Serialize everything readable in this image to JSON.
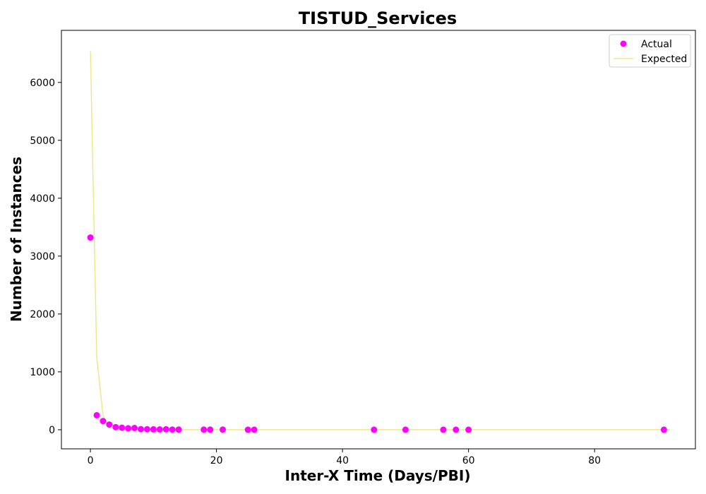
{
  "chart_data": {
    "type": "scatter",
    "title": "TISTUD_Services",
    "xlabel": "Inter-X Time (Days/PBI)",
    "ylabel": "Number of Instances",
    "xlim": [
      -4.6,
      96
    ],
    "ylim": [
      -330,
      6900
    ],
    "xticks": [
      0,
      20,
      40,
      60,
      80
    ],
    "yticks": [
      0,
      1000,
      2000,
      3000,
      4000,
      5000,
      6000
    ],
    "grid": false,
    "legend_position": "top-right",
    "series": [
      {
        "name": "Actual",
        "kind": "scatter",
        "color": "#ff00ff",
        "x": [
          0,
          1,
          2,
          3,
          4,
          5,
          6,
          7,
          8,
          9,
          10,
          11,
          12,
          13,
          14,
          18,
          19,
          21,
          25,
          26,
          45,
          50,
          56,
          58,
          60,
          91
        ],
        "y": [
          3320,
          250,
          150,
          90,
          45,
          35,
          25,
          30,
          10,
          8,
          6,
          5,
          8,
          3,
          3,
          2,
          2,
          2,
          1,
          1,
          1,
          1,
          1,
          1,
          1,
          1
        ]
      },
      {
        "name": "Expected",
        "kind": "line",
        "color": "#f0e68c",
        "x": [
          0,
          1,
          2,
          3,
          4,
          5,
          6,
          7,
          8,
          9,
          10,
          12,
          14,
          20,
          30,
          50,
          70,
          92
        ],
        "y": [
          6540,
          1260,
          243,
          47,
          9,
          2,
          0.3,
          0,
          0,
          0,
          0,
          0,
          0,
          0,
          0,
          0,
          0,
          0
        ]
      }
    ]
  }
}
